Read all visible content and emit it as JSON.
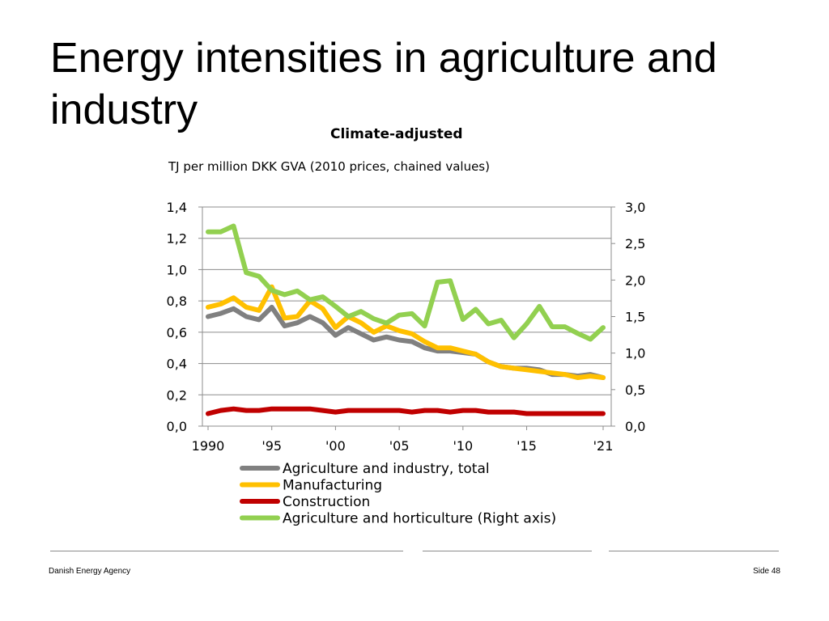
{
  "slide": {
    "title": "Energy intensities in agriculture and industry",
    "footer_left": "Danish Energy Agency",
    "footer_right": "Side 48"
  },
  "chart_data": {
    "type": "line",
    "title": "Climate-adjusted",
    "subtitle": "TJ per million DKK GVA (2010 prices, chained values)",
    "x": [
      1990,
      1991,
      1992,
      1993,
      1994,
      1995,
      1996,
      1997,
      1998,
      1999,
      2000,
      2001,
      2002,
      2003,
      2004,
      2005,
      2006,
      2007,
      2008,
      2009,
      2010,
      2011,
      2012,
      2013,
      2014,
      2015,
      2016,
      2017,
      2018,
      2019,
      2020,
      2021
    ],
    "x_tick_values": [
      1990,
      1995,
      2000,
      2005,
      2010,
      2015,
      2021
    ],
    "x_tick_labels": [
      "1990",
      "'95",
      "'00",
      "'05",
      "'10",
      "'15",
      "'21"
    ],
    "y_left": {
      "min": 0,
      "max": 1.4,
      "ticks": [
        0,
        0.2,
        0.4,
        0.6,
        0.8,
        1.0,
        1.2,
        1.4
      ],
      "tick_labels": [
        "0,0",
        "0,2",
        "0,4",
        "0,6",
        "0,8",
        "1,0",
        "1,2",
        "1,4"
      ]
    },
    "y_right": {
      "min": 0,
      "max": 3.0,
      "ticks": [
        0,
        0.5,
        1.0,
        1.5,
        2.0,
        2.5,
        3.0
      ],
      "tick_labels": [
        "0,0",
        "0,5",
        "1,0",
        "1,5",
        "2,0",
        "2,5",
        "3,0"
      ]
    },
    "grid": true,
    "series": [
      {
        "name": "Agriculture and industry, total",
        "color": "#808080",
        "axis": "left",
        "values": [
          0.7,
          0.72,
          0.75,
          0.7,
          0.68,
          0.76,
          0.64,
          0.66,
          0.7,
          0.66,
          0.58,
          0.63,
          0.59,
          0.55,
          0.57,
          0.55,
          0.54,
          0.5,
          0.48,
          0.48,
          0.47,
          0.46,
          0.41,
          0.38,
          0.37,
          0.37,
          0.36,
          0.33,
          0.33,
          0.32,
          0.33,
          0.31
        ]
      },
      {
        "name": "Manufacturing",
        "color": "#ffc000",
        "axis": "left",
        "values": [
          0.76,
          0.78,
          0.82,
          0.76,
          0.74,
          0.89,
          0.69,
          0.7,
          0.8,
          0.75,
          0.63,
          0.7,
          0.66,
          0.6,
          0.64,
          0.61,
          0.59,
          0.54,
          0.5,
          0.5,
          0.48,
          0.46,
          0.41,
          0.38,
          0.37,
          0.36,
          0.35,
          0.34,
          0.33,
          0.31,
          0.32,
          0.31
        ]
      },
      {
        "name": "Construction",
        "color": "#c00000",
        "axis": "left",
        "values": [
          0.08,
          0.1,
          0.11,
          0.1,
          0.1,
          0.11,
          0.11,
          0.11,
          0.11,
          0.1,
          0.09,
          0.1,
          0.1,
          0.1,
          0.1,
          0.1,
          0.09,
          0.1,
          0.1,
          0.09,
          0.1,
          0.1,
          0.09,
          0.09,
          0.09,
          0.08,
          0.08,
          0.08,
          0.08,
          0.08,
          0.08,
          0.08
        ]
      },
      {
        "name": "Agriculture and horticulture (Right axis)",
        "color": "#92d050",
        "axis": "right",
        "values": [
          2.66,
          2.66,
          2.74,
          2.1,
          2.05,
          1.86,
          1.8,
          1.85,
          1.73,
          1.77,
          1.64,
          1.5,
          1.57,
          1.47,
          1.41,
          1.52,
          1.54,
          1.37,
          1.97,
          1.99,
          1.46,
          1.6,
          1.4,
          1.45,
          1.21,
          1.4,
          1.64,
          1.36,
          1.36,
          1.27,
          1.19,
          1.35
        ]
      }
    ]
  }
}
